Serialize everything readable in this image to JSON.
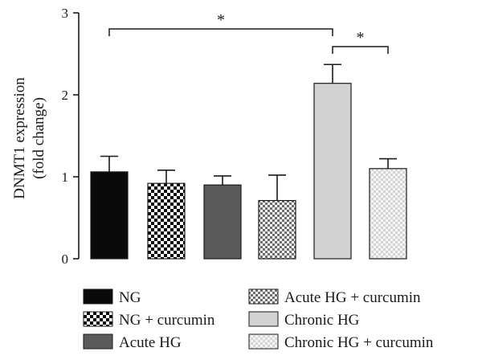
{
  "chart_data": {
    "type": "bar",
    "title": "",
    "xlabel": "",
    "ylabel": [
      "DNMT1 expression",
      "(fold change)"
    ],
    "ylim": [
      0,
      3
    ],
    "yticks": [
      0,
      1,
      2,
      3
    ],
    "grid": false,
    "legend_position": "bottom",
    "categories": [
      "NG",
      "NG + curcumin",
      "Acute HG",
      "Acute HG + curcumin",
      "Chronic HG",
      "Chronic HG + curcumin"
    ],
    "values": [
      1.06,
      0.92,
      0.9,
      0.71,
      2.14,
      1.1
    ],
    "errors": [
      0.19,
      0.16,
      0.11,
      0.31,
      0.23,
      0.12
    ],
    "fills": [
      "solid-black",
      "checker-black-white",
      "solid-dark-gray",
      "checker-gray-white",
      "solid-light-gray",
      "checker-light-gray"
    ],
    "colors": {
      "black": "#0a0a0a",
      "dark_gray": "#5a5a5a",
      "mid_gray": "#8c8c8c",
      "light_gray": "#d2d2d2",
      "pale_gray": "#e6e6e6"
    },
    "significance": [
      {
        "from": 0,
        "to": 4,
        "label": "*"
      },
      {
        "from": 4,
        "to": 5,
        "label": "*"
      }
    ]
  }
}
